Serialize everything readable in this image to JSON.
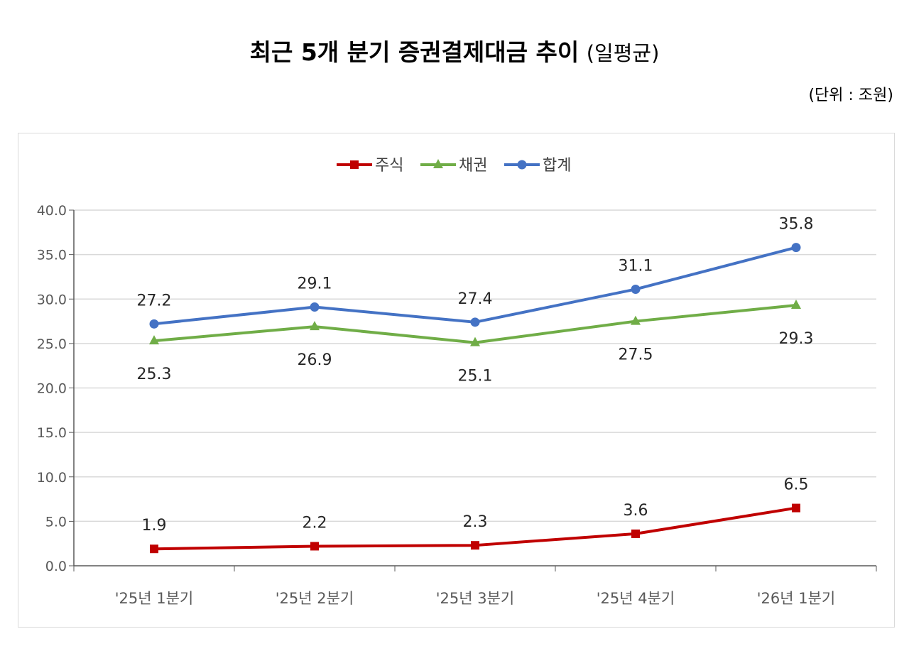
{
  "header": {
    "title": "최근 5개 분기 증권결제대금 추이",
    "title_suffix": "(일평균)",
    "unit": "(단위 : 조원)"
  },
  "chart_data": {
    "type": "line",
    "categories": [
      "'25년 1분기",
      "'25년 2분기",
      "'25년 3분기",
      "'25년 4분기",
      "'26년 1분기"
    ],
    "series": [
      {
        "name": "주식",
        "values": [
          1.9,
          2.2,
          2.3,
          3.6,
          6.5
        ],
        "color": "#c00000",
        "marker": "square",
        "label_position": "above"
      },
      {
        "name": "채권",
        "values": [
          25.3,
          26.9,
          25.1,
          27.5,
          29.3
        ],
        "color": "#70ad47",
        "marker": "triangle",
        "label_position": "below"
      },
      {
        "name": "합계",
        "values": [
          27.2,
          29.1,
          27.4,
          31.1,
          35.8
        ],
        "color": "#4472c4",
        "marker": "circle",
        "label_position": "above"
      }
    ],
    "ylim": [
      0,
      40
    ],
    "yticks": [
      "0.0",
      "5.0",
      "10.0",
      "15.0",
      "20.0",
      "25.0",
      "30.0",
      "35.0",
      "40.0"
    ],
    "ytick_step": 5,
    "grid": true,
    "legend": "top-center"
  }
}
